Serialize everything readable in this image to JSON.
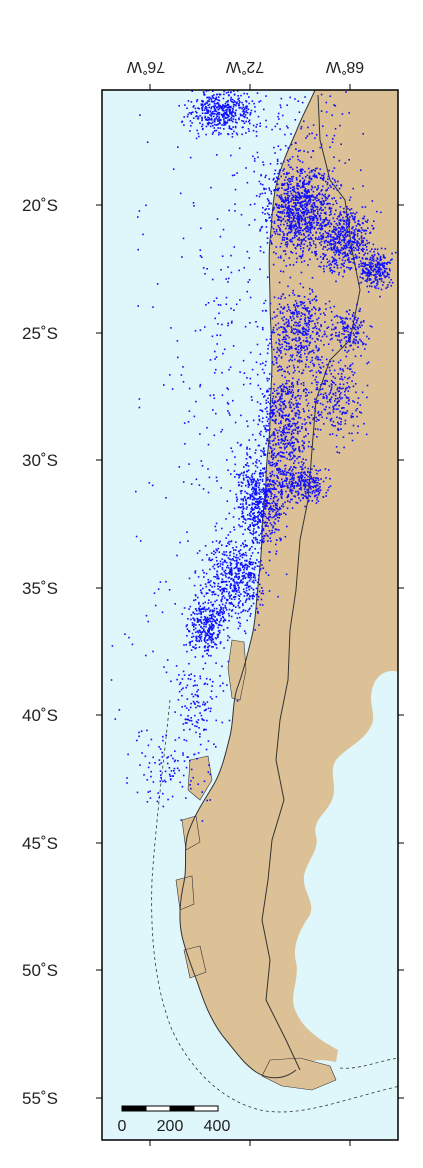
{
  "map": {
    "colors": {
      "ocean": "#dff6fb",
      "land": "#dcc196",
      "border_line": "#333333",
      "points": "#1010ff",
      "frame": "#000000"
    },
    "longitude_labels": [
      {
        "value": -76,
        "text": "76˚W"
      },
      {
        "value": -72,
        "text": "72˚W"
      },
      {
        "value": -68,
        "text": "68˚W"
      }
    ],
    "latitude_labels": [
      {
        "value": -20,
        "text": "20˚S"
      },
      {
        "value": -25,
        "text": "25˚S"
      },
      {
        "value": -30,
        "text": "30˚S"
      },
      {
        "value": -35,
        "text": "35˚S"
      },
      {
        "value": -40,
        "text": "40˚S"
      },
      {
        "value": -45,
        "text": "45˚S"
      },
      {
        "value": -50,
        "text": "50˚S"
      },
      {
        "value": -55,
        "text": "55˚S"
      }
    ],
    "scale_bar": {
      "labels": [
        "0",
        "200",
        "400"
      ],
      "segments": 4
    }
  }
}
